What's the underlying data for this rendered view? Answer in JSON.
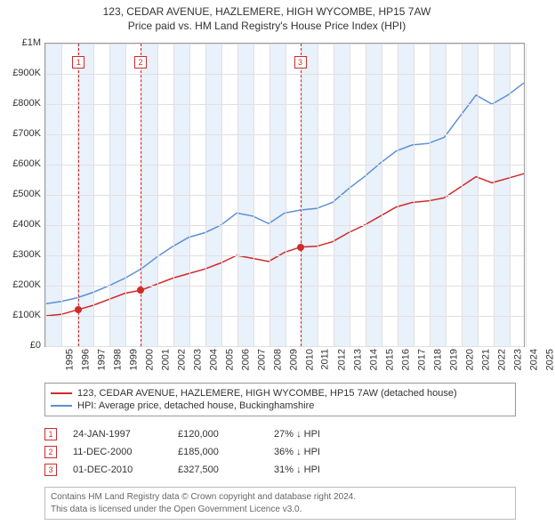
{
  "title_line1": "123, CEDAR AVENUE, HAZLEMERE, HIGH WYCOMBE, HP15 7AW",
  "title_line2": "Price paid vs. HM Land Registry's House Price Index (HPI)",
  "chart": {
    "type": "line",
    "x_axis": {
      "min": 1995,
      "max": 2025,
      "ticks": [
        1995,
        1996,
        1997,
        1998,
        1999,
        2000,
        2001,
        2002,
        2003,
        2004,
        2005,
        2006,
        2007,
        2008,
        2009,
        2010,
        2011,
        2012,
        2013,
        2014,
        2015,
        2016,
        2017,
        2018,
        2019,
        2020,
        2021,
        2022,
        2023,
        2024,
        2025
      ]
    },
    "y_axis": {
      "min": 0,
      "max": 1000000,
      "ticks": [
        0,
        100000,
        200000,
        300000,
        400000,
        500000,
        600000,
        700000,
        800000,
        900000,
        1000000
      ],
      "labels": [
        "£0",
        "£100K",
        "£200K",
        "£300K",
        "£400K",
        "£500K",
        "£600K",
        "£700K",
        "£800K",
        "£900K",
        "£1M"
      ]
    },
    "background_color": "#ffffff",
    "grid_color": "#e0e0e0",
    "alt_band_color": "#e9f1fb",
    "series": [
      {
        "name": "price_paid",
        "color": "#d02a2a",
        "width": 1.5,
        "data": [
          [
            1995,
            100000
          ],
          [
            1996,
            105000
          ],
          [
            1997,
            120000
          ],
          [
            1998,
            135000
          ],
          [
            1999,
            155000
          ],
          [
            2000,
            175000
          ],
          [
            2001,
            185000
          ],
          [
            2002,
            205000
          ],
          [
            2003,
            225000
          ],
          [
            2004,
            240000
          ],
          [
            2005,
            255000
          ],
          [
            2006,
            275000
          ],
          [
            2007,
            300000
          ],
          [
            2008,
            290000
          ],
          [
            2009,
            280000
          ],
          [
            2010,
            310000
          ],
          [
            2011,
            327500
          ],
          [
            2012,
            330000
          ],
          [
            2013,
            345000
          ],
          [
            2014,
            375000
          ],
          [
            2015,
            400000
          ],
          [
            2016,
            430000
          ],
          [
            2017,
            460000
          ],
          [
            2018,
            475000
          ],
          [
            2019,
            480000
          ],
          [
            2020,
            490000
          ],
          [
            2021,
            525000
          ],
          [
            2022,
            560000
          ],
          [
            2023,
            540000
          ],
          [
            2024,
            555000
          ],
          [
            2025,
            570000
          ]
        ]
      },
      {
        "name": "hpi",
        "color": "#5b8fd6",
        "width": 1.5,
        "data": [
          [
            1995,
            140000
          ],
          [
            1996,
            148000
          ],
          [
            1997,
            160000
          ],
          [
            1998,
            178000
          ],
          [
            1999,
            200000
          ],
          [
            2000,
            225000
          ],
          [
            2001,
            255000
          ],
          [
            2002,
            295000
          ],
          [
            2003,
            330000
          ],
          [
            2004,
            360000
          ],
          [
            2005,
            375000
          ],
          [
            2006,
            400000
          ],
          [
            2007,
            440000
          ],
          [
            2008,
            430000
          ],
          [
            2009,
            405000
          ],
          [
            2010,
            440000
          ],
          [
            2011,
            450000
          ],
          [
            2012,
            455000
          ],
          [
            2013,
            475000
          ],
          [
            2014,
            520000
          ],
          [
            2015,
            560000
          ],
          [
            2016,
            605000
          ],
          [
            2017,
            645000
          ],
          [
            2018,
            665000
          ],
          [
            2019,
            670000
          ],
          [
            2020,
            690000
          ],
          [
            2021,
            760000
          ],
          [
            2022,
            830000
          ],
          [
            2023,
            800000
          ],
          [
            2024,
            830000
          ],
          [
            2025,
            870000
          ]
        ]
      }
    ],
    "event_lines": [
      {
        "n": "1",
        "year": 1997.07
      },
      {
        "n": "2",
        "year": 2000.95
      },
      {
        "n": "3",
        "year": 2010.92
      }
    ],
    "sale_markers": [
      {
        "year": 1997.07,
        "value": 120000
      },
      {
        "year": 2000.95,
        "value": 185000
      },
      {
        "year": 2010.92,
        "value": 327500
      }
    ]
  },
  "legend": {
    "items": [
      {
        "color": "#d02a2a",
        "label": "123, CEDAR AVENUE, HAZLEMERE, HIGH WYCOMBE, HP15 7AW (detached house)"
      },
      {
        "color": "#5b8fd6",
        "label": "HPI: Average price, detached house, Buckinghamshire"
      }
    ]
  },
  "transactions": [
    {
      "n": "1",
      "date": "24-JAN-1997",
      "price": "£120,000",
      "delta": "27% ↓ HPI"
    },
    {
      "n": "2",
      "date": "11-DEC-2000",
      "price": "£185,000",
      "delta": "36% ↓ HPI"
    },
    {
      "n": "3",
      "date": "01-DEC-2010",
      "price": "£327,500",
      "delta": "31% ↓ HPI"
    }
  ],
  "footer_line1": "Contains HM Land Registry data © Crown copyright and database right 2024.",
  "footer_line2": "This data is licensed under the Open Government Licence v3.0."
}
